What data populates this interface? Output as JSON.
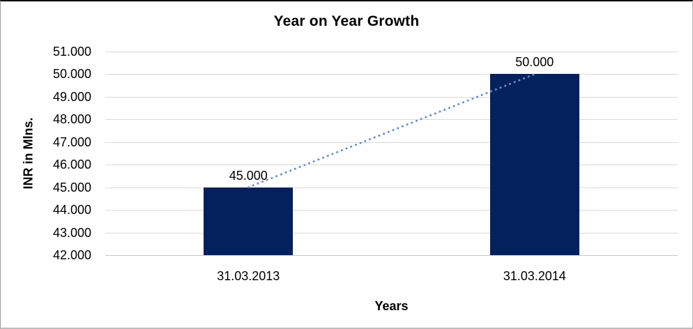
{
  "chart_data": {
    "type": "bar",
    "title": "Year on Year Growth",
    "xlabel": "Years",
    "ylabel": "INR in Mlns.",
    "categories": [
      "31.03.2013",
      "31.03.2014"
    ],
    "values": [
      45.0,
      50.0
    ],
    "value_labels": [
      "45.000",
      "50.000"
    ],
    "yticks": [
      "51.000",
      "50.000",
      "49.000",
      "48.000",
      "47.000",
      "46.000",
      "45.000",
      "44.000",
      "43.000",
      "42.000"
    ],
    "ylim": [
      42,
      51
    ],
    "grid": "horizontal",
    "legend": "none",
    "trendline": {
      "style": "dotted",
      "from_value": 45.0,
      "to_value": 50.0
    },
    "colors": {
      "bar": "#03215c",
      "trendline": "#5e8fd3",
      "gridline": "#d9d9d9",
      "axis_line": "#c6c6c6",
      "text": "#000000"
    }
  }
}
